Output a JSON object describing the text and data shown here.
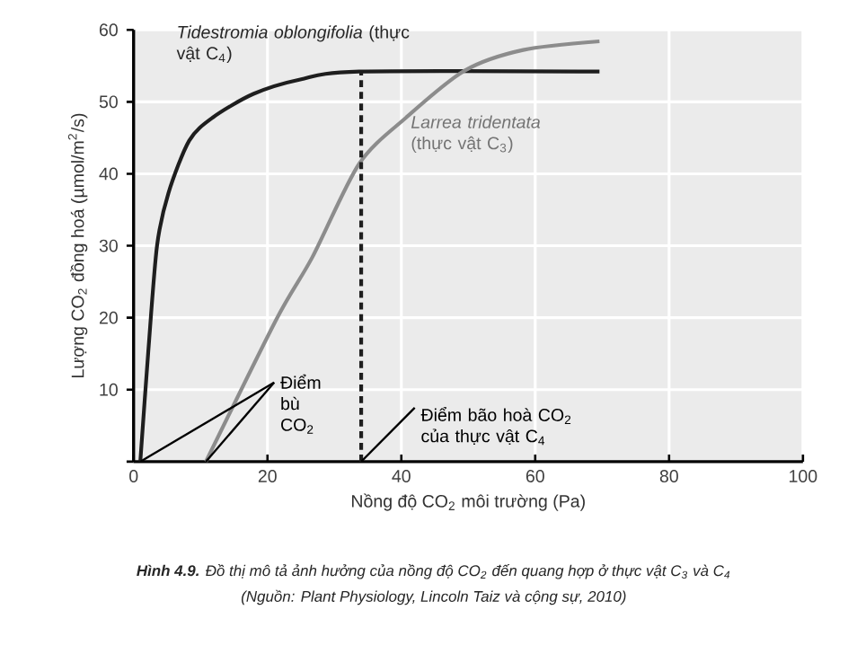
{
  "chart_data": {
    "type": "line",
    "title": "**Hình 4.9.** Đồ thị mô tả ảnh hưởng của nồng độ CO$_{2}$ đến quang hợp ở thực vật C$_{3}$ và C$_{4}$",
    "xlabel": "Nồng độ CO$_{2}$ môi trường (Pa)",
    "ylabel": "Lượng CO$_{2}$ đồng hoá (µmol/m$^{2}$/s)",
    "series": [
      {
        "name": "*Tidestromia oblongifolia* (thực vật C$_{4}$)",
        "color": "#1e1e1e",
        "x": [
          1.0,
          2.2,
          3.5,
          5.2,
          8.3,
          11.8,
          17.9,
          24.9,
          33.7,
          69.6
        ],
        "values": [
          0,
          15.4,
          30,
          37.3,
          44.6,
          47.8,
          51.1,
          53.1,
          54.2,
          54.2
        ]
      },
      {
        "name": "*Larrea tridentata* (thực vật C$_{3}$)",
        "color": "#8c8c8c",
        "x": [
          10.8,
          21.4,
          26.7,
          33.7,
          40.7,
          49.4,
          58.2,
          69.6
        ],
        "values": [
          0,
          19.9,
          28.4,
          41.4,
          47.8,
          54.3,
          57.2,
          58.4
        ]
      }
    ],
    "xlim": [
      0,
      100
    ],
    "ylim": [
      0,
      60
    ],
    "xticks": [
      0,
      20,
      40,
      60,
      80,
      100
    ],
    "yticks": [
      {
        "value": 0,
        "label": null
      },
      10,
      20,
      30,
      40,
      50,
      60
    ],
    "grid": true,
    "marker": "none",
    "line_style": "solid",
    "ref_lines": [
      {
        "axis": "x",
        "value": 34,
        "line_style": "dashed",
        "color": "#1e1e1e",
        "label": "Điểm bão hoà CO$_{2}$ của thực vật C$_{4}$"
      }
    ],
    "annotations": [
      {
        "text": "Điểm bù CO$_{2}$",
        "x": 10.8,
        "y": 0
      },
      "(Nguồn: Plant Physiology, Lincoln Taiz và cộng sự, 2010)"
    ]
  }
}
